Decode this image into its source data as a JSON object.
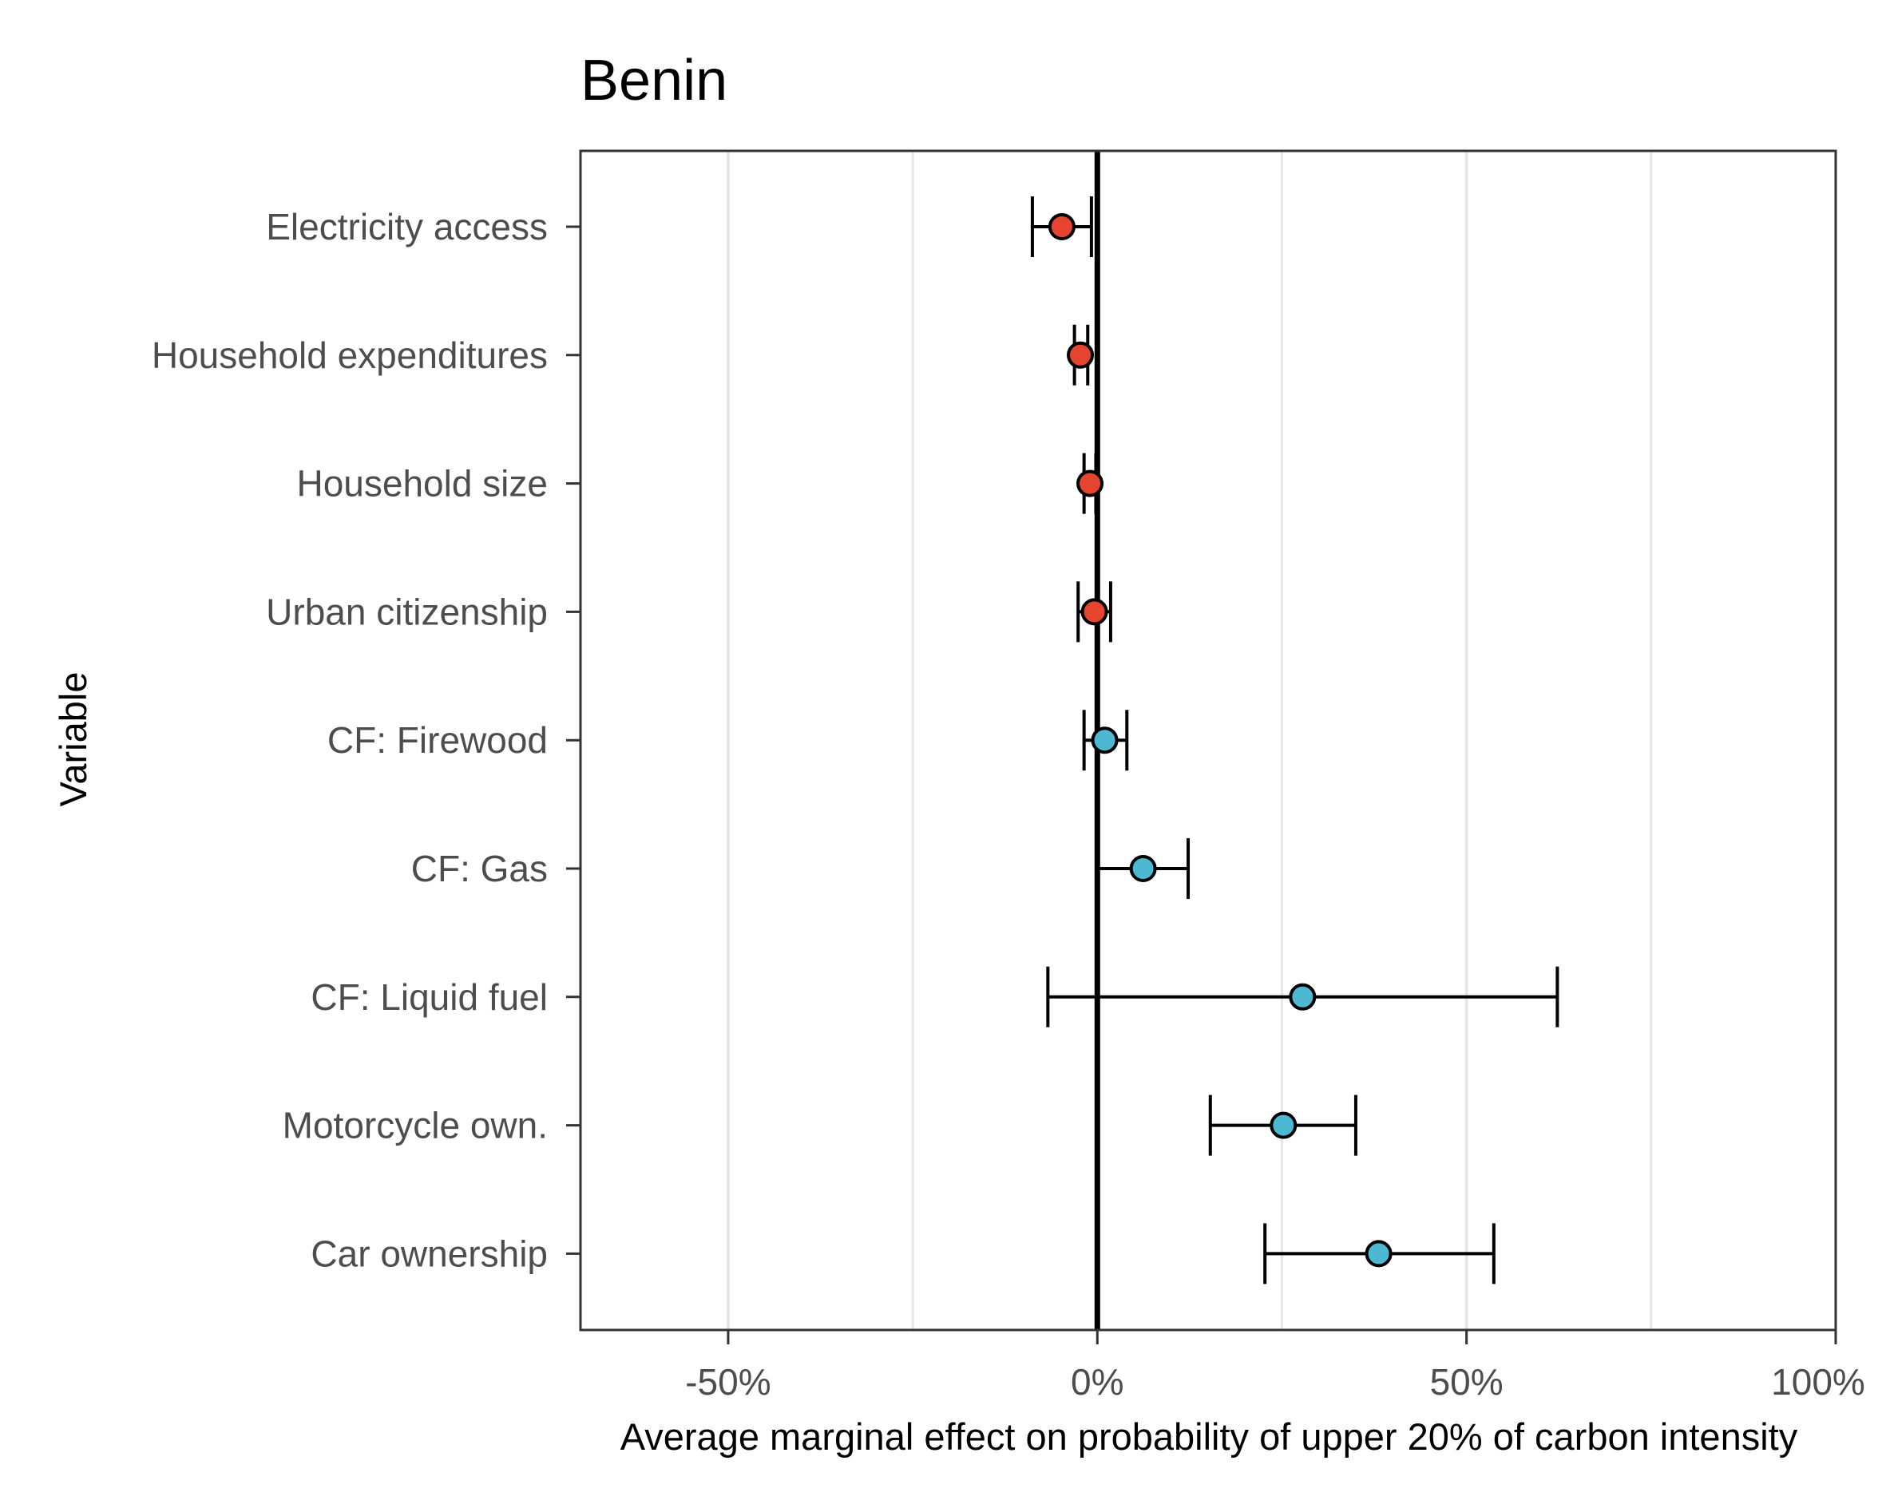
{
  "chart_data": {
    "type": "scatter",
    "subtype": "dot-and-whisker",
    "title": "Benin",
    "xlabel": "Average marginal effect on probability of upper 20% of carbon intensity",
    "ylabel": "Variable",
    "xlim": [
      -0.7,
      1.0
    ],
    "x_ticks": [
      -0.5,
      0,
      0.5,
      1.0
    ],
    "x_tick_labels": [
      "-50%",
      "0%",
      "50%",
      "100%"
    ],
    "grid": "vertical major and minor lines",
    "reference_line_x": 0,
    "colors": {
      "negative": "#E5452F",
      "positive": "#4DB8D2",
      "errorbar": "#000000",
      "gridline": "#e6e6e6",
      "panel_border": "#333333"
    },
    "categories": [
      "Electricity access",
      "Household expenditures",
      "Household size",
      "Urban citizenship",
      "CF: Firewood",
      "CF: Gas",
      "CF: Liquid fuel",
      "Motorcycle own.",
      "Car ownership"
    ],
    "points": [
      {
        "variable": "Electricity access",
        "estimate": -0.048,
        "conf_low": -0.088,
        "conf_high": -0.008,
        "sign": "negative"
      },
      {
        "variable": "Household expenditures",
        "estimate": -0.023,
        "conf_low": -0.031,
        "conf_high": -0.013,
        "sign": "negative"
      },
      {
        "variable": "Household size",
        "estimate": -0.01,
        "conf_low": -0.018,
        "conf_high": -0.002,
        "sign": "negative"
      },
      {
        "variable": "Urban citizenship",
        "estimate": -0.004,
        "conf_low": -0.026,
        "conf_high": 0.018,
        "sign": "negative"
      },
      {
        "variable": "CF: Firewood",
        "estimate": 0.01,
        "conf_low": -0.018,
        "conf_high": 0.04,
        "sign": "positive"
      },
      {
        "variable": "CF: Gas",
        "estimate": 0.062,
        "conf_low": 0.001,
        "conf_high": 0.123,
        "sign": "positive"
      },
      {
        "variable": "CF: Liquid fuel",
        "estimate": 0.278,
        "conf_low": -0.067,
        "conf_high": 0.623,
        "sign": "positive"
      },
      {
        "variable": "Motorcycle own.",
        "estimate": 0.252,
        "conf_low": 0.153,
        "conf_high": 0.35,
        "sign": "positive"
      },
      {
        "variable": "Car ownership",
        "estimate": 0.381,
        "conf_low": 0.227,
        "conf_high": 0.537,
        "sign": "positive"
      }
    ]
  }
}
